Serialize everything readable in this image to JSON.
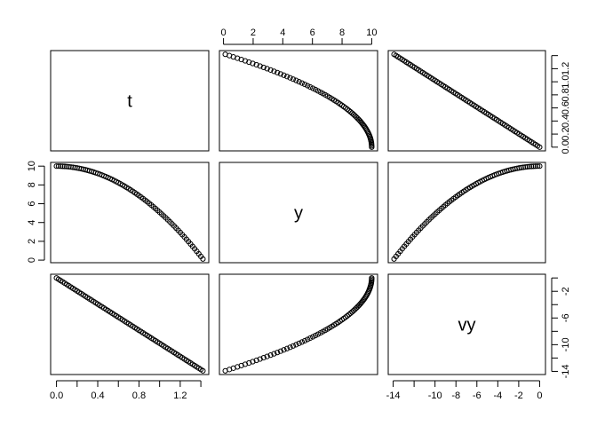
{
  "chart_data": {
    "type": "scatter-matrix",
    "variables": [
      "t",
      "y",
      "vy"
    ],
    "grid": false,
    "point_style": "open-circle",
    "point_color": "#000000",
    "ticks": {
      "t": {
        "values": [
          0,
          0.2,
          0.4,
          0.6,
          0.8,
          1.0,
          1.2,
          1.4
        ],
        "bottom_labels": [
          "0.0",
          "",
          "0.4",
          "",
          "0.8",
          "",
          "1.2",
          ""
        ],
        "right_labels": [
          "0.0",
          "0.2",
          "0.4",
          "0.6",
          "0.8",
          "1.0",
          "1.2",
          ""
        ]
      },
      "y": {
        "values": [
          0,
          2,
          4,
          6,
          8,
          10
        ],
        "top_labels": [
          "0",
          "2",
          "4",
          "6",
          "8",
          "10"
        ],
        "left_labels": [
          "0",
          "2",
          "4",
          "6",
          "8",
          "10"
        ]
      },
      "vy": {
        "values": [
          -14,
          -12,
          -10,
          -8,
          -6,
          -4,
          -2,
          0
        ],
        "bottom_labels": [
          "-14",
          "",
          "-10",
          "-8",
          "-6",
          "-4",
          "-2",
          "0"
        ],
        "right_labels": [
          "-14",
          "",
          "-10",
          "",
          "-6",
          "",
          "-2",
          ""
        ]
      }
    },
    "data": {
      "t": [
        0,
        0.02,
        0.04,
        0.06,
        0.08,
        0.1,
        0.12,
        0.14,
        0.16,
        0.18,
        0.2,
        0.22,
        0.24,
        0.26,
        0.28,
        0.3,
        0.32,
        0.34,
        0.36,
        0.38,
        0.4,
        0.42,
        0.44,
        0.46,
        0.48,
        0.5,
        0.52,
        0.54,
        0.56,
        0.58,
        0.6,
        0.62,
        0.64,
        0.66,
        0.68,
        0.7,
        0.72,
        0.74,
        0.76,
        0.78,
        0.8,
        0.82,
        0.84,
        0.86,
        0.88,
        0.9,
        0.92,
        0.94,
        0.96,
        0.98,
        1.0,
        1.02,
        1.04,
        1.06,
        1.08,
        1.1,
        1.12,
        1.14,
        1.16,
        1.18,
        1.2,
        1.22,
        1.24,
        1.26,
        1.28,
        1.3,
        1.32,
        1.34,
        1.36,
        1.38,
        1.4,
        1.42
      ],
      "y": [
        10,
        9.998,
        9.992,
        9.982,
        9.969,
        9.951,
        9.929,
        9.904,
        9.875,
        9.841,
        9.804,
        9.763,
        9.718,
        9.669,
        9.616,
        9.559,
        9.498,
        9.434,
        9.365,
        9.292,
        9.216,
        9.136,
        9.051,
        8.963,
        8.871,
        8.775,
        8.675,
        8.571,
        8.463,
        8.352,
        8.236,
        8.116,
        7.993,
        7.866,
        7.734,
        7.599,
        7.46,
        7.317,
        7.17,
        7.019,
        6.864,
        6.705,
        6.543,
        6.376,
        6.205,
        6.031,
        5.853,
        5.67,
        5.484,
        5.294,
        5.1,
        4.902,
        4.7,
        4.494,
        4.285,
        4.071,
        3.853,
        3.632,
        3.407,
        3.177,
        2.944,
        2.707,
        2.466,
        2.221,
        1.972,
        1.719,
        1.462,
        1.202,
        0.937,
        0.668,
        0.396,
        0.12
      ],
      "vy": [
        0,
        -0.196,
        -0.392,
        -0.588,
        -0.784,
        -0.98,
        -1.176,
        -1.372,
        -1.568,
        -1.764,
        -1.96,
        -2.156,
        -2.352,
        -2.548,
        -2.744,
        -2.94,
        -3.136,
        -3.332,
        -3.528,
        -3.724,
        -3.92,
        -4.116,
        -4.312,
        -4.508,
        -4.704,
        -4.9,
        -5.096,
        -5.292,
        -5.488,
        -5.684,
        -5.88,
        -6.076,
        -6.272,
        -6.468,
        -6.664,
        -6.86,
        -7.056,
        -7.252,
        -7.448,
        -7.644,
        -7.84,
        -8.036,
        -8.232,
        -8.428,
        -8.624,
        -8.82,
        -9.016,
        -9.212,
        -9.408,
        -9.604,
        -9.8,
        -9.996,
        -10.192,
        -10.388,
        -10.584,
        -10.78,
        -10.976,
        -11.172,
        -11.368,
        -11.564,
        -11.76,
        -11.956,
        -12.152,
        -12.348,
        -12.544,
        -12.74,
        -12.936,
        -13.132,
        -13.328,
        -13.524,
        -13.72,
        -13.916
      ]
    }
  }
}
